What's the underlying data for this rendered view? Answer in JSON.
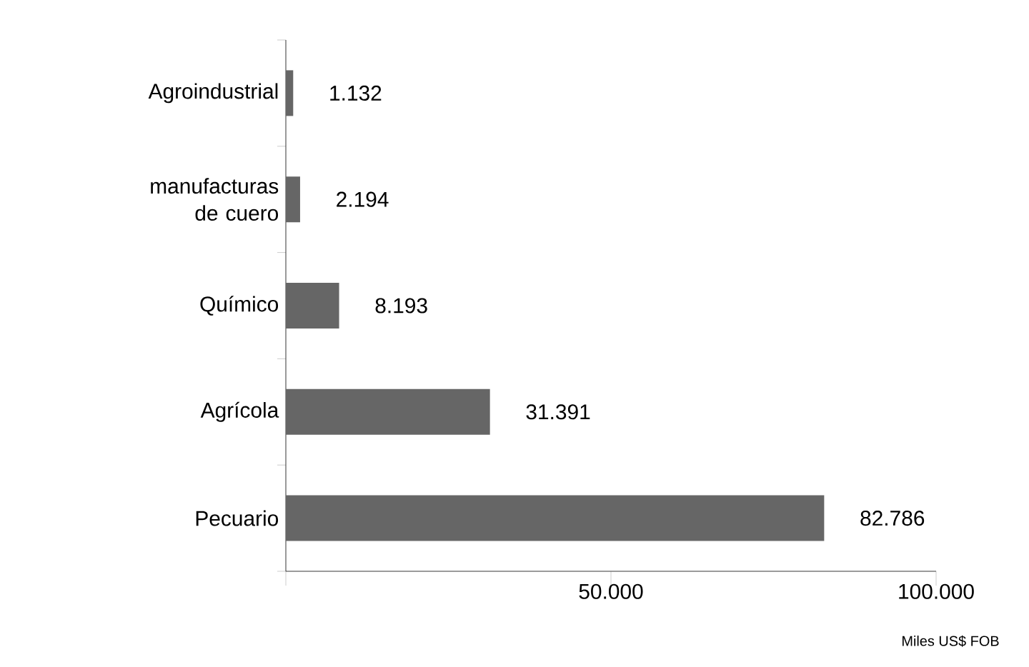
{
  "chart_data": {
    "type": "bar",
    "orientation": "horizontal",
    "categories": [
      "Agroindustrial",
      "manufacturas de cuero",
      "Químico",
      "Agrícola",
      "Pecuario"
    ],
    "values": [
      1132,
      2194,
      8193,
      31391,
      82786
    ],
    "value_labels": [
      "1.132",
      "2.194",
      "8.193",
      "31.391",
      "82.786"
    ],
    "color": "#666666",
    "xlim": [
      0,
      100000
    ],
    "xticks": [
      {
        "value": 0,
        "label": null
      },
      {
        "value": 50000,
        "label": "50.000"
      },
      {
        "value": 100000,
        "label": "100.000"
      }
    ],
    "xlabel": "Miles US$ FOB"
  }
}
